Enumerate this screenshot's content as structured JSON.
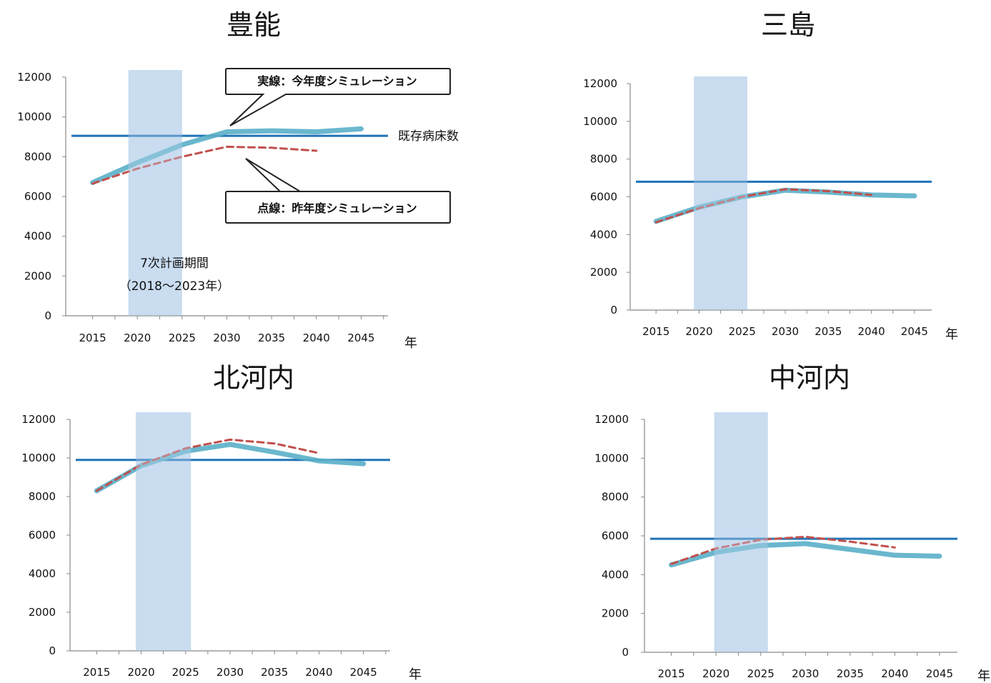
{
  "colors": {
    "actual": "#5aafc8",
    "actual_shadow": "#8fb4c4",
    "previous": "#c0504d",
    "existing_beds": "#1f73b7",
    "plan_band": "#c9dcf0"
  },
  "chart_data": [
    {
      "type": "line",
      "title": "豊能",
      "x_unit": "年",
      "x": [
        2015,
        2020,
        2025,
        2030,
        2035,
        2040,
        2045
      ],
      "xlim": [
        2012,
        2048
      ],
      "ylim": [
        0,
        12000
      ],
      "yticks": [
        0,
        2000,
        4000,
        6000,
        8000,
        10000,
        12000
      ],
      "series": [
        {
          "name": "実線：今年度シミュレーション",
          "style": "solid",
          "x": [
            2015,
            2020,
            2025,
            2030,
            2035,
            2040,
            2045
          ],
          "values": [
            6700,
            7700,
            8600,
            9250,
            9300,
            9250,
            9400
          ]
        },
        {
          "name": "点線：昨年度シミュレーション",
          "style": "dashed",
          "x": [
            2015,
            2020,
            2025,
            2030,
            2035,
            2040
          ],
          "values": [
            6650,
            7400,
            8000,
            8500,
            8450,
            8300
          ]
        }
      ],
      "reference_line": {
        "label": "既存病床数",
        "value": 9050
      },
      "band": {
        "label": "7次計画期間",
        "sublabel": "（2018～2023年）",
        "x_start": 2019,
        "x_end": 2025
      },
      "annotations": [
        {
          "label": "実線：今年度シミュレーション",
          "target": "solid"
        },
        {
          "label": "点線：昨年度シミュレーション",
          "target": "dashed"
        }
      ]
    },
    {
      "type": "line",
      "title": "三島",
      "x_unit": "年",
      "x": [
        2015,
        2020,
        2025,
        2030,
        2035,
        2040,
        2045
      ],
      "xlim": [
        2012,
        2047
      ],
      "ylim": [
        0,
        12000
      ],
      "yticks": [
        0,
        2000,
        4000,
        6000,
        8000,
        10000,
        12000
      ],
      "series": [
        {
          "name": "",
          "style": "solid",
          "x": [
            2015,
            2020,
            2025,
            2030,
            2035,
            2040,
            2045
          ],
          "values": [
            4700,
            5450,
            6000,
            6350,
            6250,
            6100,
            6050
          ]
        },
        {
          "name": "",
          "style": "dashed",
          "x": [
            2015,
            2020,
            2025,
            2030,
            2035,
            2040
          ],
          "values": [
            4650,
            5400,
            6000,
            6400,
            6300,
            6100
          ]
        }
      ],
      "reference_line": {
        "label": "",
        "value": 6800
      },
      "band": {
        "label": "",
        "sublabel": "",
        "x_start": 2019.4,
        "x_end": 2025.6
      }
    },
    {
      "type": "line",
      "title": "北河内",
      "x_unit": "年",
      "x": [
        2015,
        2020,
        2025,
        2030,
        2035,
        2040,
        2045
      ],
      "xlim": [
        2012,
        2048
      ],
      "ylim": [
        0,
        12000
      ],
      "yticks": [
        0,
        2000,
        4000,
        6000,
        8000,
        10000,
        12000
      ],
      "series": [
        {
          "name": "",
          "style": "solid",
          "x": [
            2015,
            2020,
            2025,
            2030,
            2035,
            2040,
            2045
          ],
          "values": [
            8300,
            9600,
            10350,
            10700,
            10300,
            9850,
            9700
          ]
        },
        {
          "name": "",
          "style": "dashed",
          "x": [
            2015,
            2020,
            2025,
            2030,
            2035,
            2040
          ],
          "values": [
            8300,
            9650,
            10500,
            10950,
            10750,
            10250
          ]
        }
      ],
      "reference_line": {
        "label": "",
        "value": 9900
      },
      "band": {
        "label": "",
        "sublabel": "",
        "x_start": 2019.4,
        "x_end": 2025.6
      }
    },
    {
      "type": "line",
      "title": "中河内",
      "x_unit": "年",
      "x": [
        2015,
        2020,
        2025,
        2030,
        2035,
        2040,
        2045
      ],
      "xlim": [
        2012,
        2047
      ],
      "ylim": [
        0,
        12000
      ],
      "yticks": [
        0,
        2000,
        4000,
        6000,
        8000,
        10000,
        12000
      ],
      "series": [
        {
          "name": "",
          "style": "solid",
          "x": [
            2015,
            2020,
            2025,
            2030,
            2035,
            2040,
            2045
          ],
          "values": [
            4500,
            5150,
            5500,
            5600,
            5300,
            5000,
            4950
          ]
        },
        {
          "name": "",
          "style": "dashed",
          "x": [
            2015,
            2020,
            2025,
            2030,
            2035,
            2040
          ],
          "values": [
            4550,
            5350,
            5800,
            5950,
            5700,
            5400
          ]
        }
      ],
      "reference_line": {
        "label": "",
        "value": 5850
      },
      "band": {
        "label": "",
        "sublabel": "",
        "x_start": 2019.8,
        "x_end": 2025.8
      }
    }
  ]
}
